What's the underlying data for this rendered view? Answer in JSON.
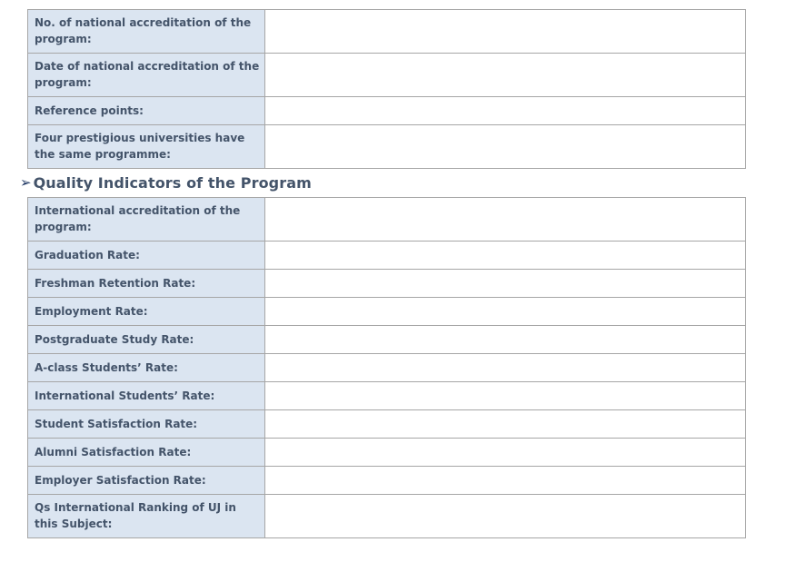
{
  "document": {
    "heading": {
      "bullet": "➢",
      "text": "Quality Indicators of the Program"
    },
    "program_info_table": {
      "rows": [
        {
          "label": "No. of national accreditation of the program:",
          "value": ""
        },
        {
          "label": "Date of national accreditation of the program:",
          "value": ""
        },
        {
          "label": "Reference points:",
          "value": ""
        },
        {
          "label": "Four prestigious universities have the same programme:",
          "value": ""
        }
      ]
    },
    "quality_indicators_table": {
      "rows": [
        {
          "label": "International accreditation of the program:",
          "value": ""
        },
        {
          "label": "Graduation Rate:",
          "value": ""
        },
        {
          "label": "Freshman Retention Rate:",
          "value": ""
        },
        {
          "label": "Employment Rate:",
          "value": ""
        },
        {
          "label": "Postgraduate Study Rate:",
          "value": ""
        },
        {
          "label": "A-class Students’ Rate:",
          "value": ""
        },
        {
          "label": "International Students’ Rate:",
          "value": ""
        },
        {
          "label": "Student Satisfaction Rate:",
          "value": ""
        },
        {
          "label": "Alumni Satisfaction Rate:",
          "value": ""
        },
        {
          "label": "Employer Satisfaction Rate:",
          "value": ""
        },
        {
          "label": "Qs International Ranking of UJ in this Subject:",
          "value": ""
        }
      ]
    },
    "colors": {
      "label_cell_bg": "#dbe5f1",
      "label_text": "#44546a",
      "border": "#a6a6a6",
      "heading_text": "#44546a",
      "bullet": "#1f3864",
      "page_bg": "#ffffff"
    }
  }
}
